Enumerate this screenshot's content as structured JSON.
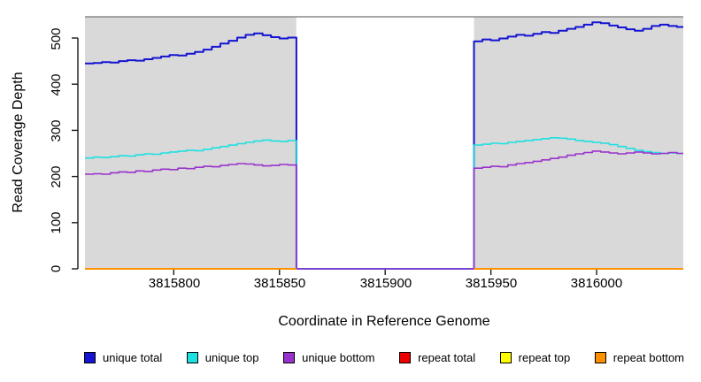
{
  "chart_data": {
    "type": "line",
    "title": "",
    "xlabel": "Coordinate in Reference Genome",
    "ylabel": "Read Coverage Depth",
    "xlim": [
      3815758,
      3816041
    ],
    "ylim": [
      0,
      546
    ],
    "x_ticks": [
      3815800,
      3815850,
      3815900,
      3815950,
      3816000
    ],
    "y_ticks": [
      0,
      100,
      200,
      300,
      400,
      500
    ],
    "grid": false,
    "legend_position": "bottom",
    "panel_bg": "#d9d9d9",
    "panel_top_border": "#8a8a8a",
    "axis_color": "#1a1a1a",
    "shaded_regions": [
      [
        3815758,
        3815858
      ],
      [
        3815942,
        3816041
      ]
    ],
    "unshaded_region": [
      3815858,
      3815942
    ],
    "series": [
      {
        "name": "unique total",
        "color": "#1414d2",
        "width": 2,
        "segments": [
          [
            [
              3815758,
              445
            ],
            [
              3815762,
              446
            ],
            [
              3815766,
              448
            ],
            [
              3815770,
              447
            ],
            [
              3815774,
              450
            ],
            [
              3815778,
              452
            ],
            [
              3815782,
              451
            ],
            [
              3815786,
              454
            ],
            [
              3815790,
              457
            ],
            [
              3815794,
              460
            ],
            [
              3815798,
              463
            ],
            [
              3815802,
              462
            ],
            [
              3815806,
              466
            ],
            [
              3815810,
              470
            ],
            [
              3815814,
              475
            ],
            [
              3815818,
              481
            ],
            [
              3815822,
              488
            ],
            [
              3815826,
              494
            ],
            [
              3815830,
              501
            ],
            [
              3815834,
              507
            ],
            [
              3815838,
              510
            ],
            [
              3815842,
              506
            ],
            [
              3815846,
              502
            ],
            [
              3815850,
              499
            ],
            [
              3815854,
              501
            ],
            [
              3815858,
              0
            ],
            [
              3815942,
              0
            ],
            [
              3815942,
              493
            ],
            [
              3815946,
              497
            ],
            [
              3815950,
              495
            ],
            [
              3815954,
              499
            ],
            [
              3815958,
              503
            ],
            [
              3815962,
              507
            ],
            [
              3815966,
              505
            ],
            [
              3815970,
              509
            ],
            [
              3815974,
              513
            ],
            [
              3815978,
              511
            ],
            [
              3815982,
              516
            ],
            [
              3815986,
              520
            ],
            [
              3815990,
              524
            ],
            [
              3815994,
              529
            ],
            [
              3815998,
              534
            ],
            [
              3816002,
              532
            ],
            [
              3816006,
              527
            ],
            [
              3816010,
              523
            ],
            [
              3816014,
              519
            ],
            [
              3816018,
              516
            ],
            [
              3816022,
              520
            ],
            [
              3816026,
              526
            ],
            [
              3816030,
              529
            ],
            [
              3816034,
              526
            ],
            [
              3816038,
              524
            ],
            [
              3816041,
              524
            ]
          ]
        ]
      },
      {
        "name": "unique top",
        "color": "#1fe0e0",
        "width": 1.6,
        "segments": [
          [
            [
              3815758,
              240
            ],
            [
              3815762,
              242
            ],
            [
              3815766,
              241
            ],
            [
              3815770,
              243
            ],
            [
              3815774,
              245
            ],
            [
              3815778,
              244
            ],
            [
              3815782,
              247
            ],
            [
              3815786,
              249
            ],
            [
              3815790,
              248
            ],
            [
              3815794,
              251
            ],
            [
              3815798,
              253
            ],
            [
              3815802,
              255
            ],
            [
              3815806,
              257
            ],
            [
              3815810,
              256
            ],
            [
              3815814,
              259
            ],
            [
              3815818,
              262
            ],
            [
              3815822,
              265
            ],
            [
              3815826,
              268
            ],
            [
              3815830,
              271
            ],
            [
              3815834,
              274
            ],
            [
              3815838,
              277
            ],
            [
              3815842,
              279
            ],
            [
              3815846,
              277
            ],
            [
              3815850,
              276
            ],
            [
              3815854,
              278
            ],
            [
              3815858,
              0
            ],
            [
              3815942,
              0
            ],
            [
              3815942,
              268
            ],
            [
              3815946,
              270
            ],
            [
              3815950,
              272
            ],
            [
              3815954,
              271
            ],
            [
              3815958,
              274
            ],
            [
              3815962,
              276
            ],
            [
              3815966,
              278
            ],
            [
              3815970,
              280
            ],
            [
              3815974,
              282
            ],
            [
              3815978,
              284
            ],
            [
              3815982,
              283
            ],
            [
              3815986,
              281
            ],
            [
              3815990,
              278
            ],
            [
              3815994,
              276
            ],
            [
              3815998,
              274
            ],
            [
              3816002,
              272
            ],
            [
              3816006,
              269
            ],
            [
              3816010,
              265
            ],
            [
              3816014,
              261
            ],
            [
              3816018,
              257
            ],
            [
              3816022,
              254
            ],
            [
              3816026,
              252
            ],
            [
              3816030,
              250
            ],
            [
              3816034,
              251
            ],
            [
              3816038,
              250
            ],
            [
              3816041,
              250
            ]
          ]
        ]
      },
      {
        "name": "unique bottom",
        "color": "#9932cc",
        "width": 1.6,
        "segments": [
          [
            [
              3815758,
              205
            ],
            [
              3815762,
              206
            ],
            [
              3815766,
              205
            ],
            [
              3815770,
              208
            ],
            [
              3815774,
              210
            ],
            [
              3815778,
              209
            ],
            [
              3815782,
              212
            ],
            [
              3815786,
              211
            ],
            [
              3815790,
              214
            ],
            [
              3815794,
              216
            ],
            [
              3815798,
              215
            ],
            [
              3815802,
              218
            ],
            [
              3815806,
              217
            ],
            [
              3815810,
              220
            ],
            [
              3815814,
              222
            ],
            [
              3815818,
              221
            ],
            [
              3815822,
              224
            ],
            [
              3815826,
              226
            ],
            [
              3815830,
              228
            ],
            [
              3815834,
              227
            ],
            [
              3815838,
              225
            ],
            [
              3815842,
              223
            ],
            [
              3815846,
              224
            ],
            [
              3815850,
              226
            ],
            [
              3815854,
              225
            ],
            [
              3815858,
              0
            ],
            [
              3815942,
              0
            ],
            [
              3815942,
              218
            ],
            [
              3815946,
              220
            ],
            [
              3815950,
              222
            ],
            [
              3815954,
              221
            ],
            [
              3815958,
              225
            ],
            [
              3815962,
              228
            ],
            [
              3815966,
              230
            ],
            [
              3815970,
              233
            ],
            [
              3815974,
              236
            ],
            [
              3815978,
              239
            ],
            [
              3815982,
              242
            ],
            [
              3815986,
              246
            ],
            [
              3815990,
              249
            ],
            [
              3815994,
              252
            ],
            [
              3815998,
              255
            ],
            [
              3816002,
              253
            ],
            [
              3816006,
              251
            ],
            [
              3816010,
              249
            ],
            [
              3816014,
              251
            ],
            [
              3816018,
              253
            ],
            [
              3816022,
              251
            ],
            [
              3816026,
              249
            ],
            [
              3816030,
              250
            ],
            [
              3816034,
              252
            ],
            [
              3816038,
              250
            ],
            [
              3816041,
              250
            ]
          ]
        ]
      },
      {
        "name": "repeat total",
        "color": "#ee0000",
        "width": 1.6,
        "segments": [
          [
            [
              3815758,
              0
            ],
            [
              3815858,
              0
            ]
          ],
          [
            [
              3815942,
              0
            ],
            [
              3816041,
              0
            ]
          ]
        ]
      },
      {
        "name": "repeat top",
        "color": "#ffff00",
        "width": 1.6,
        "segments": [
          [
            [
              3815758,
              0
            ],
            [
              3815858,
              0
            ]
          ],
          [
            [
              3815942,
              0
            ],
            [
              3816041,
              0
            ]
          ]
        ]
      },
      {
        "name": "repeat bottom",
        "color": "#ff9100",
        "width": 2,
        "segments": [
          [
            [
              3815758,
              0
            ],
            [
              3815858,
              0
            ]
          ],
          [
            [
              3815942,
              0
            ],
            [
              3816041,
              0
            ]
          ]
        ]
      }
    ]
  }
}
